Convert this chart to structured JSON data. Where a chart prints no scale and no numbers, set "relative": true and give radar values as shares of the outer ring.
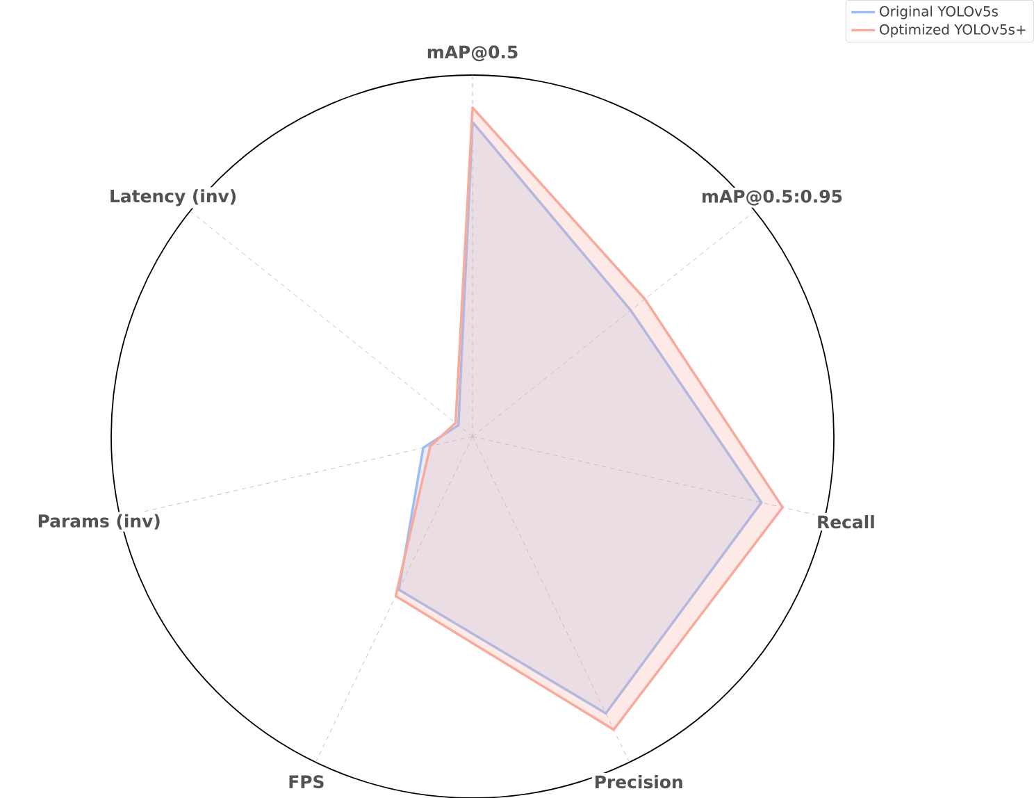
{
  "chart_data": {
    "type": "radar",
    "relative": true,
    "grid": true,
    "legend": "top right",
    "categories": [
      "mAP@0.5",
      "mAP@0.5:0.95",
      "Recall",
      "Precision",
      "FPS",
      "Params (inv)",
      "Latency (inv)"
    ],
    "series": [
      {
        "name": "Original YOLOv5s",
        "color": "#9fbcf5",
        "values": [
          0.87,
          0.56,
          0.82,
          0.85,
          0.47,
          0.14,
          0.05
        ]
      },
      {
        "name": "Optimized YOLOv5s+",
        "color": "#f7ab9c",
        "values": [
          0.91,
          0.61,
          0.88,
          0.9,
          0.49,
          0.12,
          0.06
        ]
      }
    ]
  }
}
